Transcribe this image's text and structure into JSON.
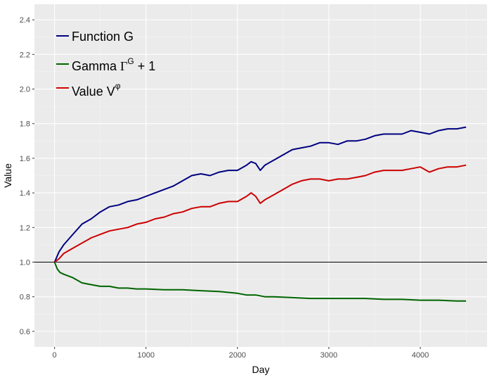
{
  "chart_data": {
    "type": "line",
    "xlabel": "Day",
    "ylabel": "Value",
    "xlim": [
      -220,
      4730
    ],
    "ylim": [
      0.51,
      2.49
    ],
    "x_ticks": [
      0,
      1000,
      2000,
      3000,
      4000
    ],
    "y_ticks": [
      0.6,
      0.8,
      1.0,
      1.2,
      1.4,
      1.6,
      1.8,
      2.0,
      2.2,
      2.4
    ],
    "x_tick_labels": [
      "0",
      "1000",
      "2000",
      "3000",
      "4000"
    ],
    "y_tick_labels": [
      "0.6",
      "0.8",
      "1.0",
      "1.2",
      "1.4",
      "1.6",
      "1.8",
      "2.0",
      "2.2",
      "2.4"
    ],
    "grid": true,
    "legend_position": "top-left",
    "reference_line": {
      "y": 1.0,
      "color": "#000000"
    },
    "series": [
      {
        "name": "Function G",
        "color": "#000080",
        "x": [
          0,
          50,
          100,
          200,
          300,
          400,
          500,
          600,
          700,
          800,
          900,
          1000,
          1100,
          1200,
          1300,
          1400,
          1500,
          1600,
          1700,
          1800,
          1900,
          2000,
          2100,
          2150,
          2200,
          2250,
          2300,
          2400,
          2500,
          2600,
          2700,
          2800,
          2900,
          3000,
          3100,
          3200,
          3300,
          3400,
          3500,
          3600,
          3700,
          3800,
          3900,
          4000,
          4100,
          4200,
          4300,
          4400,
          4500
        ],
        "y": [
          1.0,
          1.06,
          1.1,
          1.16,
          1.22,
          1.25,
          1.29,
          1.32,
          1.33,
          1.35,
          1.36,
          1.38,
          1.4,
          1.42,
          1.44,
          1.47,
          1.5,
          1.51,
          1.5,
          1.52,
          1.53,
          1.53,
          1.56,
          1.58,
          1.57,
          1.53,
          1.56,
          1.59,
          1.62,
          1.65,
          1.66,
          1.67,
          1.69,
          1.69,
          1.68,
          1.7,
          1.7,
          1.71,
          1.73,
          1.74,
          1.74,
          1.74,
          1.76,
          1.75,
          1.74,
          1.76,
          1.77,
          1.77,
          1.78
        ]
      },
      {
        "name": "Gamma",
        "color": "#006400",
        "x": [
          0,
          30,
          60,
          100,
          200,
          300,
          400,
          500,
          600,
          700,
          800,
          900,
          1000,
          1200,
          1400,
          1600,
          1800,
          2000,
          2100,
          2200,
          2300,
          2400,
          2600,
          2800,
          3000,
          3200,
          3400,
          3600,
          3800,
          4000,
          4200,
          4400,
          4500
        ],
        "y": [
          1.0,
          0.96,
          0.94,
          0.93,
          0.91,
          0.88,
          0.87,
          0.86,
          0.86,
          0.85,
          0.85,
          0.845,
          0.845,
          0.84,
          0.84,
          0.835,
          0.83,
          0.82,
          0.81,
          0.81,
          0.8,
          0.8,
          0.795,
          0.79,
          0.79,
          0.79,
          0.79,
          0.785,
          0.785,
          0.78,
          0.78,
          0.775,
          0.775
        ]
      },
      {
        "name": "Value",
        "color": "#cc0000",
        "x": [
          0,
          50,
          100,
          200,
          300,
          400,
          500,
          600,
          700,
          800,
          900,
          1000,
          1100,
          1200,
          1300,
          1400,
          1500,
          1600,
          1700,
          1800,
          1900,
          2000,
          2100,
          2150,
          2200,
          2250,
          2300,
          2400,
          2500,
          2600,
          2700,
          2800,
          2900,
          3000,
          3100,
          3200,
          3300,
          3400,
          3500,
          3600,
          3700,
          3800,
          3900,
          4000,
          4100,
          4200,
          4300,
          4400,
          4500
        ],
        "y": [
          1.0,
          1.02,
          1.05,
          1.08,
          1.11,
          1.14,
          1.16,
          1.18,
          1.19,
          1.2,
          1.22,
          1.23,
          1.25,
          1.26,
          1.28,
          1.29,
          1.31,
          1.32,
          1.32,
          1.34,
          1.35,
          1.35,
          1.38,
          1.4,
          1.38,
          1.34,
          1.36,
          1.39,
          1.42,
          1.45,
          1.47,
          1.48,
          1.48,
          1.47,
          1.48,
          1.48,
          1.49,
          1.5,
          1.52,
          1.53,
          1.53,
          1.53,
          1.54,
          1.55,
          1.52,
          1.54,
          1.55,
          1.55,
          1.56
        ]
      }
    ],
    "legend": [
      {
        "name": "Function G",
        "color": "#000080"
      },
      {
        "name": "Gamma",
        "math": "Γ",
        "sup": "G",
        "suffix": " + 1",
        "color": "#006400"
      },
      {
        "name": "Value V",
        "sup": "φ",
        "color": "#cc0000"
      }
    ]
  }
}
